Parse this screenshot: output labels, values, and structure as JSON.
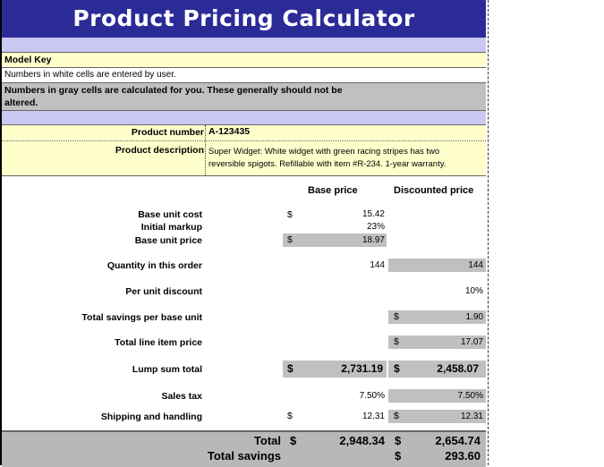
{
  "title": "Product Pricing Calculator",
  "model_key": {
    "heading": "Model Key",
    "white_note": "Numbers in white cells are entered by user.",
    "gray_note_line1": "Numbers in gray cells are calculated for you. These generally should not be",
    "gray_note_line2": "altered."
  },
  "product": {
    "number_label": "Product number",
    "number_value": "A-123435",
    "desc_label": "Product description",
    "desc_line1": "Super Widget: White widget with green racing stripes has two",
    "desc_line2": "reversible spigots. Refillable with item #R-234. 1-year warranty."
  },
  "columns": {
    "base": "Base price",
    "discounted": "Discounted price"
  },
  "rows": {
    "base_unit_cost": {
      "label": "Base unit cost",
      "cur": "$",
      "base": "15.42"
    },
    "initial_markup": {
      "label": "Initial markup",
      "base": "23%"
    },
    "base_unit_price": {
      "label": "Base unit price",
      "cur": "$",
      "base": "18.97"
    },
    "quantity": {
      "label": "Quantity in this order",
      "base": "144",
      "disc": "144"
    },
    "per_unit_discount": {
      "label": "Per unit discount",
      "disc": "10%"
    },
    "total_savings_per_unit": {
      "label": "Total savings per base unit",
      "disc_cur": "$",
      "disc": "1.90"
    },
    "total_line_item": {
      "label": "Total line item price",
      "disc_cur": "$",
      "disc": "17.07"
    },
    "lump_sum": {
      "label": "Lump sum total",
      "cur": "$",
      "base": "2,731.19",
      "disc_cur": "$",
      "disc": "2,458.07"
    },
    "sales_tax": {
      "label": "Sales tax",
      "base": "7.50%",
      "disc": "7.50%"
    },
    "shipping": {
      "label": "Shipping and handling",
      "cur": "$",
      "base": "12.31",
      "disc_cur": "$",
      "disc": "12.31"
    }
  },
  "totals": {
    "total_label": "Total",
    "total_cur": "$",
    "total_base": "2,948.34",
    "total_disc_cur": "$",
    "total_disc": "2,654.74",
    "savings_label": "Total savings",
    "savings_cur": "$",
    "savings_value": "293.60"
  }
}
